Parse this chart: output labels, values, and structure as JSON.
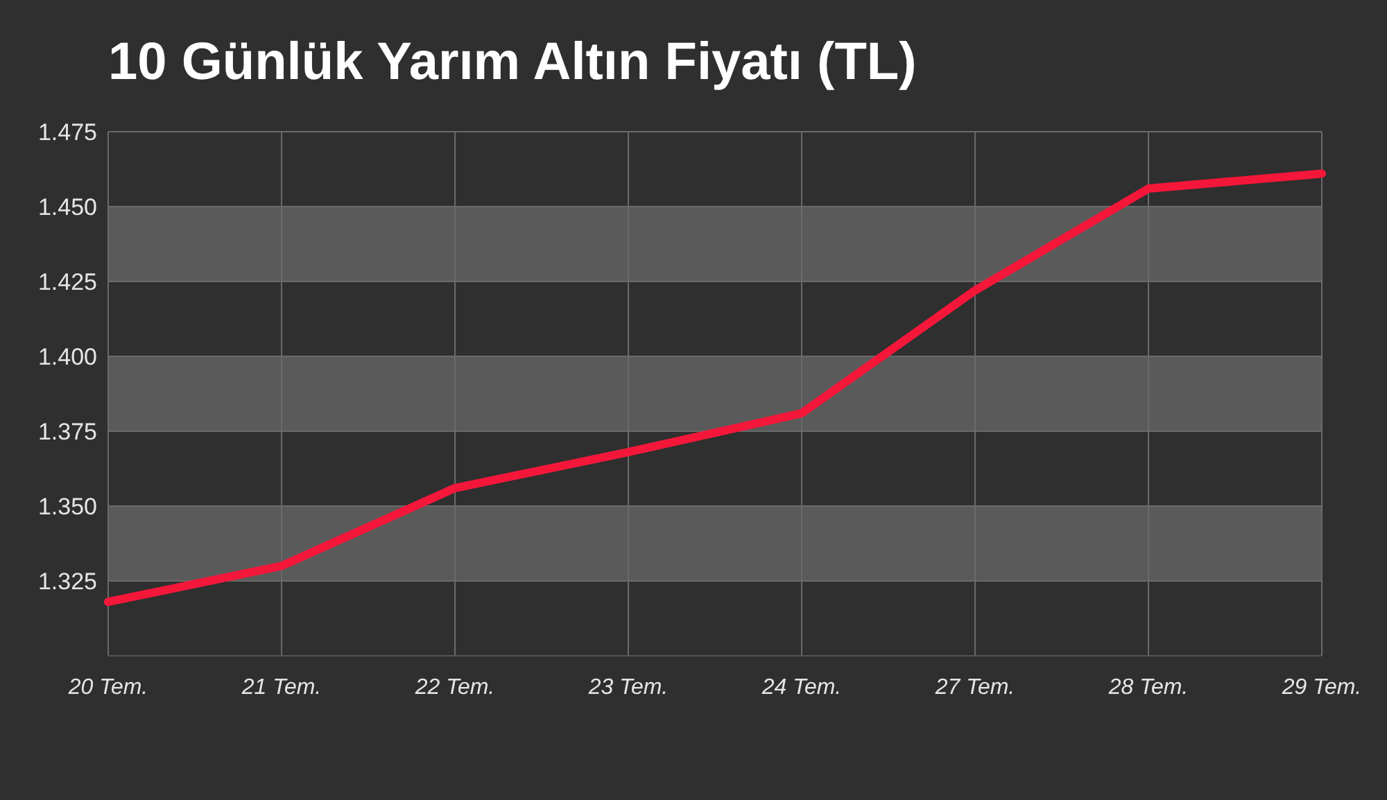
{
  "chart_data": {
    "type": "line",
    "title": "10 Günlük Yarım Altın Fiyatı (TL)",
    "categories": [
      "20 Tem.",
      "21 Tem.",
      "22 Tem.",
      "23 Tem.",
      "24 Tem.",
      "27 Tem.",
      "28 Tem.",
      "29 Tem."
    ],
    "series": [
      {
        "color": "#f5173a",
        "values": [
          1318,
          1330,
          1356,
          1368,
          1381,
          1422,
          1456,
          1461
        ]
      }
    ],
    "ylim": [
      1300,
      1475
    ],
    "yticks": [
      {
        "value": 1300,
        "label": null
      },
      {
        "value": 1325,
        "label": "1.325"
      },
      {
        "value": 1350,
        "label": "1.350"
      },
      {
        "value": 1375,
        "label": "1.375"
      },
      {
        "value": 1400,
        "label": "1.400"
      },
      {
        "value": 1425,
        "label": "1.425"
      },
      {
        "value": 1450,
        "label": "1.450"
      },
      {
        "value": 1475,
        "label": "1.475"
      }
    ],
    "grid": true,
    "marker": "none",
    "line_style": "solid"
  }
}
